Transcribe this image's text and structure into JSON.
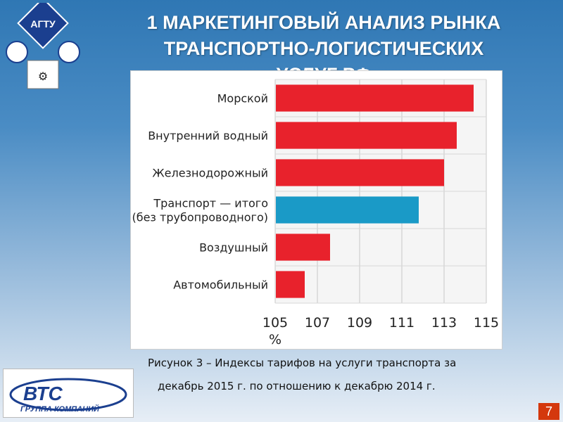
{
  "slide": {
    "title_line1": "1 МАРКЕТИНГОВЫЙ АНАЛИЗ РЫНКА",
    "title_line2": "ТРАНСПОРТНО-ЛОГИСТИЧЕСКИХ",
    "title_line3": "УСЛУГ РФ",
    "page_number": "7"
  },
  "logo": {
    "top_text": "АГТУ"
  },
  "caption": {
    "line1": "Рисунок 3 – Индексы тарифов на услуги транспорта за",
    "line2": "декабрь 2015 г. по отношению к декабрю 2014 г."
  },
  "company_logo": {
    "brand": "ВТС",
    "subtitle": "ГРУППА КОМПАНИЙ"
  },
  "colors": {
    "bar_primary": "#e8222c",
    "bar_highlight": "#1a9ac7"
  },
  "chart_data": {
    "type": "bar",
    "orientation": "horizontal",
    "categories": [
      [
        "Морской"
      ],
      [
        "Внутренний водный"
      ],
      [
        "Железнодорожный"
      ],
      [
        "Транспорт — итого",
        "(без трубопроводного)"
      ],
      [
        "Воздушный"
      ],
      [
        "Автомобильный"
      ]
    ],
    "values": [
      114.4,
      113.6,
      113.0,
      111.8,
      107.6,
      106.4
    ],
    "highlight_index": 3,
    "xlim": [
      105,
      115
    ],
    "xticks": [
      105,
      107,
      109,
      111,
      113,
      115
    ],
    "xlabel": "%",
    "grid": true
  }
}
